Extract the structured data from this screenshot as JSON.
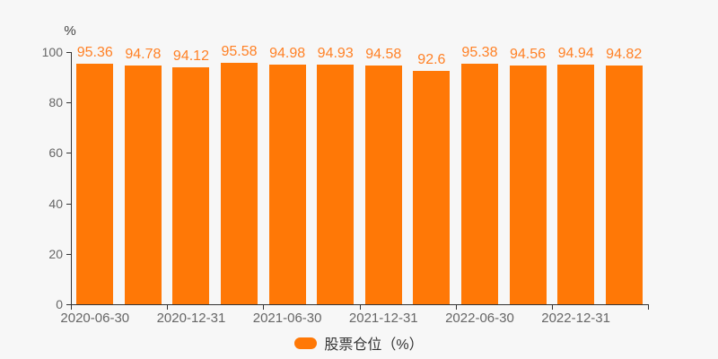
{
  "chart_data": {
    "type": "bar",
    "title": "",
    "ylabel": "%",
    "xlabel": "",
    "ylim": [
      0,
      100
    ],
    "y_ticks": [
      0,
      20,
      40,
      60,
      80,
      100
    ],
    "grid": false,
    "values": [
      95.36,
      94.78,
      94.12,
      95.58,
      94.98,
      94.93,
      94.58,
      92.6,
      95.38,
      94.56,
      94.94,
      94.82
    ],
    "value_labels": [
      "95.36",
      "94.78",
      "94.12",
      "95.58",
      "94.98",
      "94.93",
      "94.58",
      "92.6",
      "95.38",
      "94.56",
      "94.94",
      "94.82"
    ],
    "x_tick_labels": [
      "2020-06-30",
      "2020-12-31",
      "2021-06-30",
      "2021-12-31",
      "2022-06-30",
      "2022-12-31"
    ],
    "x_tick_label_slots": [
      0,
      2,
      4,
      6,
      8,
      10
    ],
    "legend": {
      "label": "股票仓位（%）",
      "position": "bottom"
    }
  },
  "colors": {
    "background": "#f7f7f7",
    "bar": "#ff7806",
    "value_label": "#ff8126",
    "axis": "#333333",
    "tick_label": "#666666",
    "unit_label": "#444444",
    "legend_text": "#333333"
  }
}
